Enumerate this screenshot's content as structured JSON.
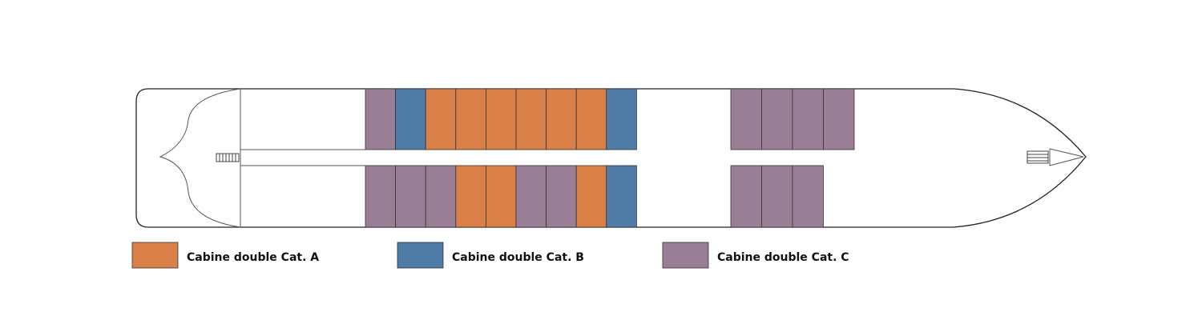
{
  "legend": [
    {
      "label": "Cabine double Cat. A",
      "color": "#d98049"
    },
    {
      "label": "Cabine double Cat. B",
      "color": "#4f7ca6"
    },
    {
      "label": "Cabine double Cat. C",
      "color": "#9a7e95"
    }
  ]
}
